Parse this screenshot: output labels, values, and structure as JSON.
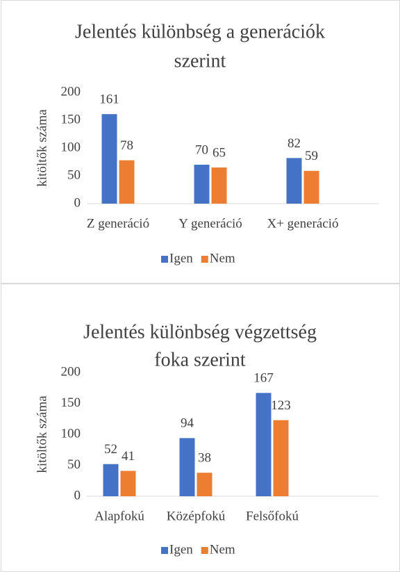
{
  "chart_data": [
    {
      "type": "bar",
      "title": "Jelentés különbség a generációk szerint",
      "title_lines": [
        "Jelentés különbség a generációk",
        "szerint"
      ],
      "y_label": "kitöltők száma",
      "categories": [
        "Z generáció",
        "Y generáció",
        "X+ generáció"
      ],
      "series": [
        {
          "name": "Igen",
          "color": "#4472c4",
          "values": [
            161,
            70,
            82
          ]
        },
        {
          "name": "Nem",
          "color": "#ed7d31",
          "values": [
            78,
            65,
            59
          ]
        }
      ],
      "ylim": [
        0,
        200
      ],
      "yticks": [
        0,
        50,
        100,
        150,
        200
      ],
      "grid": false,
      "legend": "bottom"
    },
    {
      "type": "bar",
      "title": "Jelentés különbség végzettség foka szerint",
      "title_lines": [
        "Jelentés különbség végzettség",
        "foka szerint"
      ],
      "y_label": "kitöltők száma",
      "categories": [
        "Alapfokú",
        "Középfokú",
        "Felsőfokú"
      ],
      "series": [
        {
          "name": "Igen",
          "color": "#4472c4",
          "values": [
            52,
            94,
            167
          ]
        },
        {
          "name": "Nem",
          "color": "#ed7d31",
          "values": [
            41,
            38,
            123
          ]
        }
      ],
      "ylim": [
        0,
        200
      ],
      "yticks": [
        0,
        50,
        100,
        150,
        200
      ],
      "grid": false,
      "legend": "bottom"
    }
  ]
}
